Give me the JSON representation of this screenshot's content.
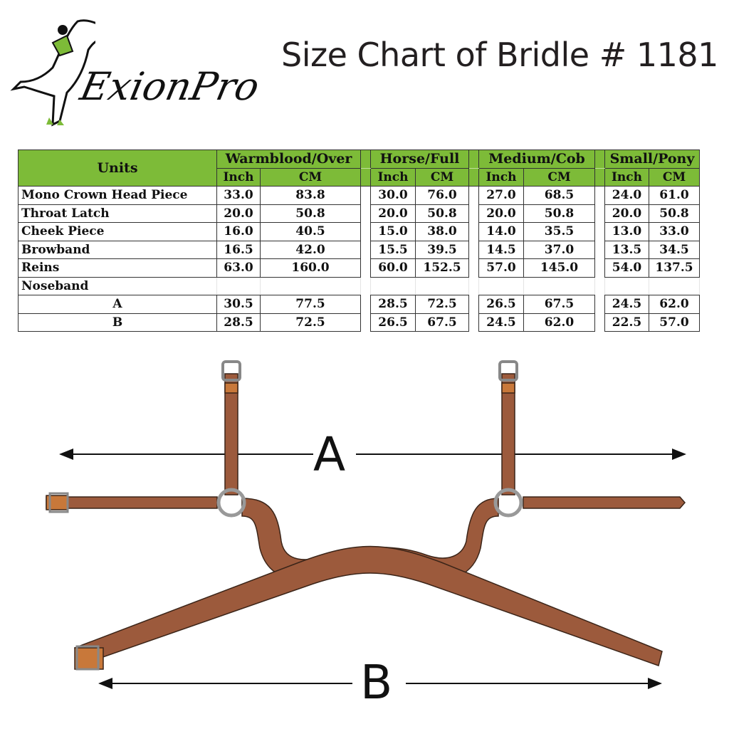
{
  "logo": {
    "brand": "ExionPro",
    "icon": "horse-and-rider-logo"
  },
  "title": "Size Chart of Bridle # 1181",
  "table": {
    "units_label": "Units",
    "groups": [
      "Warmblood/Over",
      "Horse/Full",
      "Medium/Cob",
      "Small/Pony"
    ],
    "subheaders": [
      "Inch",
      "CM"
    ],
    "rows": [
      {
        "label": "Mono Crown Head Piece",
        "values": [
          "33.0",
          "83.8",
          "30.0",
          "76.0",
          "27.0",
          "68.5",
          "24.0",
          "61.0"
        ]
      },
      {
        "label": "Throat Latch",
        "values": [
          "20.0",
          "50.8",
          "20.0",
          "50.8",
          "20.0",
          "50.8",
          "20.0",
          "50.8"
        ]
      },
      {
        "label": "Cheek Piece",
        "values": [
          "16.0",
          "40.5",
          "15.0",
          "38.0",
          "14.0",
          "35.5",
          "13.0",
          "33.0"
        ]
      },
      {
        "label": "Browband",
        "values": [
          "16.5",
          "42.0",
          "15.5",
          "39.5",
          "14.5",
          "37.0",
          "13.5",
          "34.5"
        ]
      },
      {
        "label": "Reins",
        "values": [
          "63.0",
          "160.0",
          "60.0",
          "152.5",
          "57.0",
          "145.0",
          "54.0",
          "137.5"
        ]
      }
    ],
    "noseband_label": "Noseband",
    "noseband_rows": [
      {
        "label": "A",
        "values": [
          "30.5",
          "77.5",
          "28.5",
          "72.5",
          "26.5",
          "67.5",
          "24.5",
          "62.0"
        ]
      },
      {
        "label": "B",
        "values": [
          "28.5",
          "72.5",
          "26.5",
          "67.5",
          "24.5",
          "62.0",
          "22.5",
          "57.0"
        ]
      }
    ],
    "header_color": "#7dbb38"
  },
  "diagram": {
    "label_a": "A",
    "label_b": "B",
    "leather_color": "#9c5a3c",
    "accent_color": "#c8783a"
  }
}
